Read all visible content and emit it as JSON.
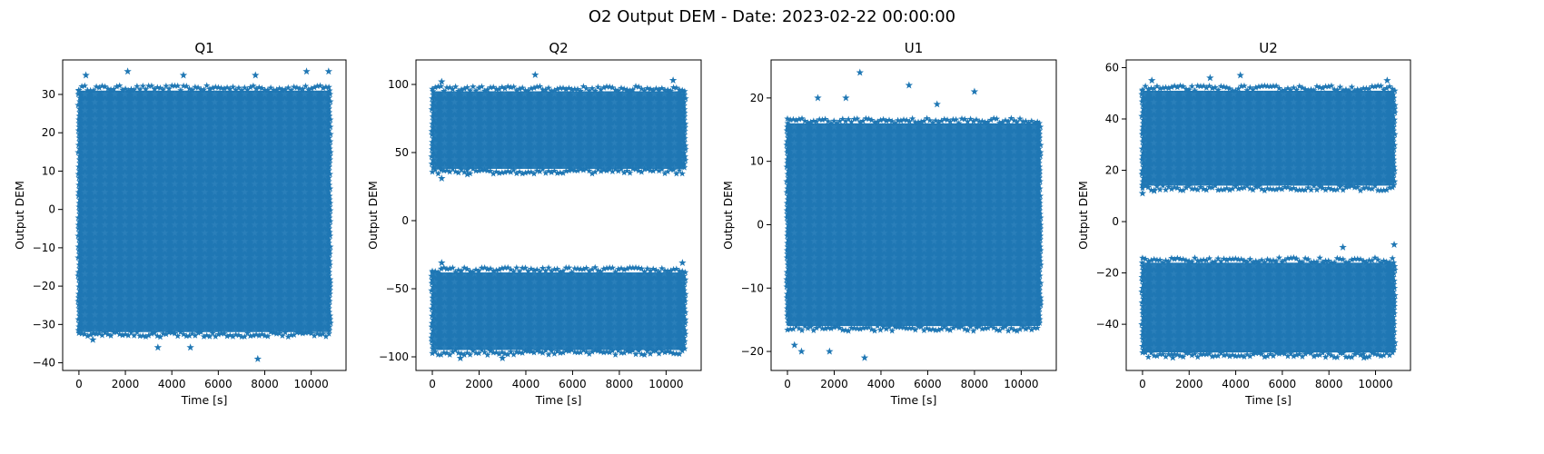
{
  "figure_title": "O2 Output DEM - Date: 2023-02-22 00:00:00",
  "marker_color": "#1f77b4",
  "chart_data": [
    {
      "type": "scatter",
      "title": "Q1",
      "xlabel": "Time [s]",
      "ylabel": "Output DEM",
      "xlim": [
        -700,
        11500
      ],
      "ylim": [
        -42,
        39
      ],
      "xticks": [
        0,
        2000,
        4000,
        6000,
        8000,
        10000
      ],
      "yticks": [
        -40,
        -30,
        -20,
        -10,
        0,
        10,
        20,
        30
      ],
      "bands": [
        [
          -32,
          31
        ]
      ],
      "outliers": [
        [
          300,
          35
        ],
        [
          2100,
          36
        ],
        [
          4500,
          35
        ],
        [
          7600,
          35
        ],
        [
          9800,
          36
        ],
        [
          10750,
          36
        ],
        [
          3400,
          -36
        ],
        [
          4800,
          -36
        ],
        [
          7700,
          -39
        ],
        [
          600,
          -34
        ]
      ]
    },
    {
      "type": "scatter",
      "title": "Q2",
      "xlabel": "Time [s]",
      "ylabel": "Output DEM",
      "xlim": [
        -700,
        11500
      ],
      "ylim": [
        -110,
        118
      ],
      "xticks": [
        0,
        2000,
        4000,
        6000,
        8000,
        10000
      ],
      "yticks": [
        -100,
        -50,
        0,
        50,
        100
      ],
      "bands": [
        [
          38,
          95
        ],
        [
          -95,
          -38
        ]
      ],
      "outliers": [
        [
          4400,
          107
        ],
        [
          400,
          102
        ],
        [
          10300,
          103
        ],
        [
          400,
          31
        ],
        [
          1500,
          34
        ],
        [
          400,
          -31
        ],
        [
          10700,
          -31
        ],
        [
          1200,
          -101
        ],
        [
          3000,
          -101
        ]
      ]
    },
    {
      "type": "scatter",
      "title": "U1",
      "xlabel": "Time [s]",
      "ylabel": "Output DEM",
      "xlim": [
        -700,
        11500
      ],
      "ylim": [
        -23,
        26
      ],
      "xticks": [
        0,
        2000,
        4000,
        6000,
        8000,
        10000
      ],
      "yticks": [
        -20,
        -10,
        0,
        10,
        20
      ],
      "bands": [
        [
          -16,
          16
        ]
      ],
      "outliers": [
        [
          3100,
          24
        ],
        [
          5200,
          22
        ],
        [
          1300,
          20
        ],
        [
          2500,
          20
        ],
        [
          8000,
          21
        ],
        [
          6400,
          19
        ],
        [
          3300,
          -21
        ],
        [
          600,
          -20
        ],
        [
          1800,
          -20
        ],
        [
          300,
          -19
        ]
      ]
    },
    {
      "type": "scatter",
      "title": "U2",
      "xlabel": "Time [s]",
      "ylabel": "Output DEM",
      "xlim": [
        -700,
        11500
      ],
      "ylim": [
        -58,
        63
      ],
      "xticks": [
        0,
        2000,
        4000,
        6000,
        8000,
        10000
      ],
      "yticks": [
        -40,
        -20,
        0,
        20,
        40,
        60
      ],
      "bands": [
        [
          14,
          51
        ],
        [
          -51,
          -16
        ]
      ],
      "outliers": [
        [
          4200,
          57
        ],
        [
          2900,
          56
        ],
        [
          400,
          55
        ],
        [
          10500,
          55
        ],
        [
          0,
          11
        ],
        [
          500,
          12
        ],
        [
          10800,
          -9
        ],
        [
          8600,
          -10
        ],
        [
          1300,
          -53
        ],
        [
          9500,
          -53
        ]
      ]
    }
  ]
}
